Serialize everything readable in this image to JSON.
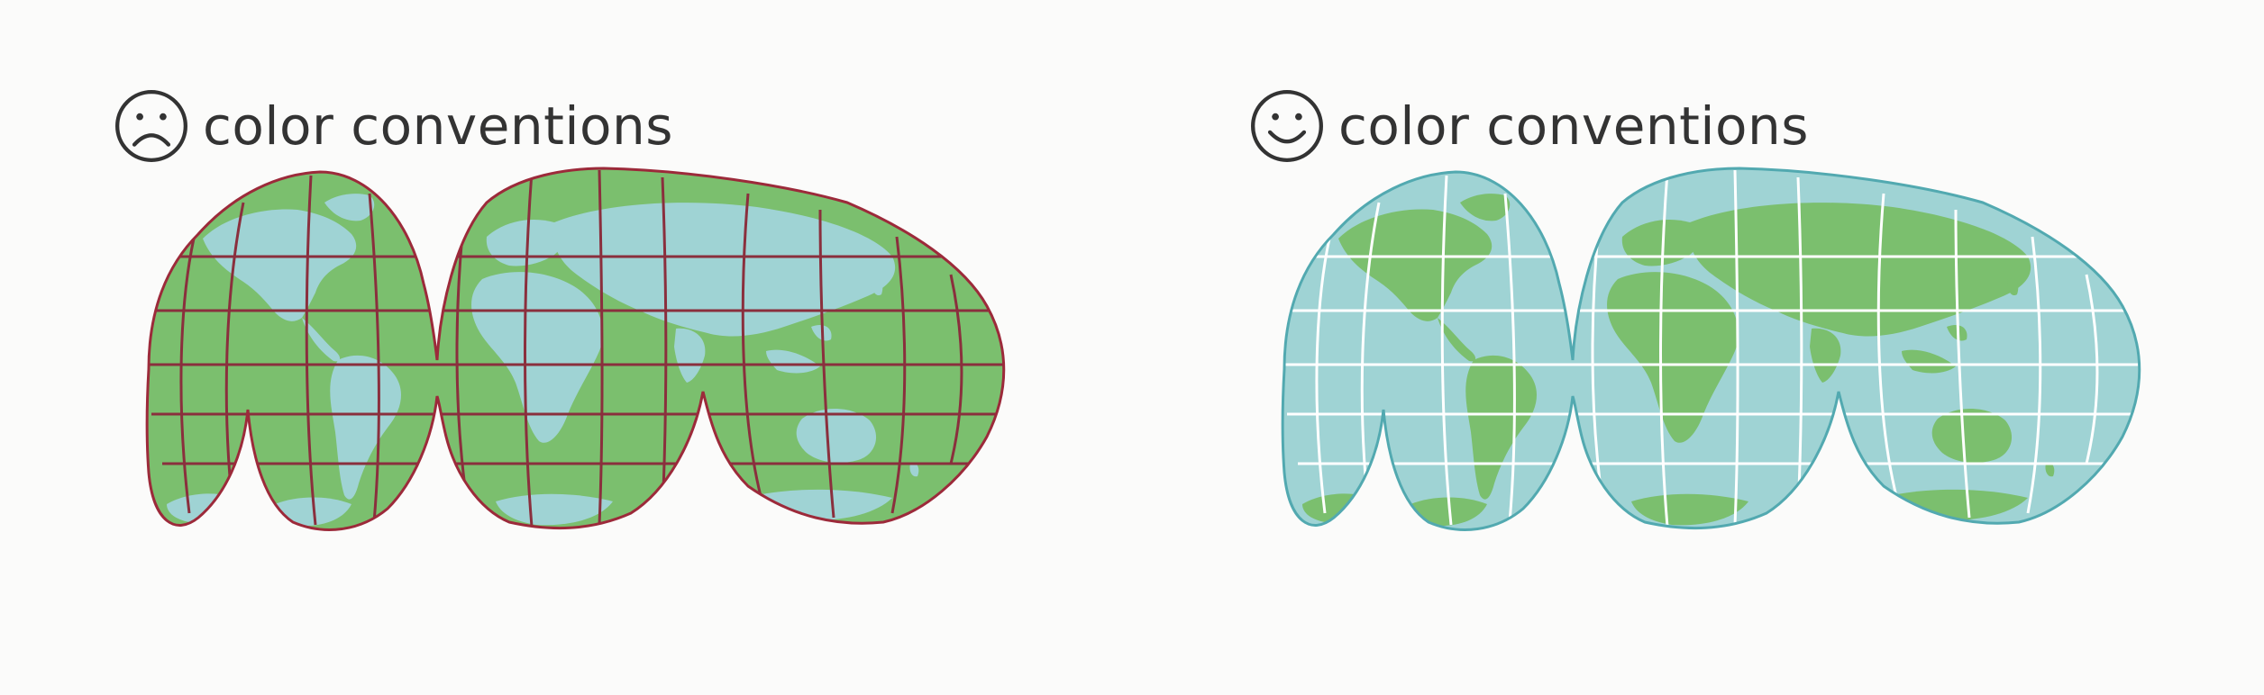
{
  "colors": {
    "green": "#7bbf6e",
    "blue": "#9fd3d4",
    "bad_border": "#9c2a3a",
    "bad_grid": "#8a2f3d",
    "good_border": "#52a9b0",
    "good_grid": "#ffffff",
    "caption_text": "#333333"
  },
  "panels": [
    {
      "id": "bad",
      "face": "sad-face-icon",
      "caption": "color conventions",
      "ocean_color": "#7bbf6e",
      "land_color": "#9fd3d4",
      "grid_color": "#8a2f3d",
      "border_color": "#9c2a3a"
    },
    {
      "id": "good",
      "face": "smiley-face-icon",
      "caption": "color conventions",
      "ocean_color": "#9fd3d4",
      "land_color": "#7bbf6e",
      "grid_color": "#ffffff",
      "border_color": "#52a9b0"
    }
  ]
}
